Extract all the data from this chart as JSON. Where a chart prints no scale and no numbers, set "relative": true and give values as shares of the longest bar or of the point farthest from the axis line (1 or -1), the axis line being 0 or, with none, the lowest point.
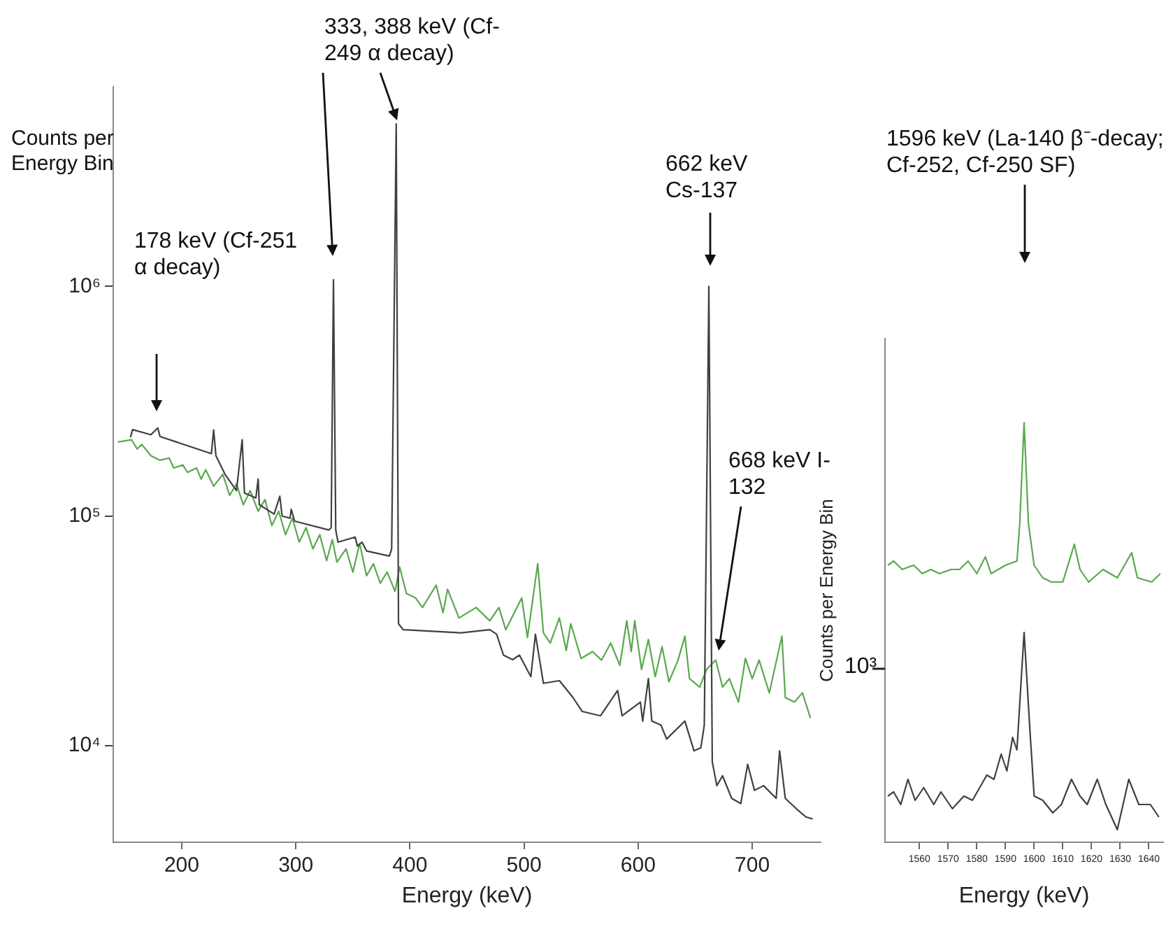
{
  "chart_data": [
    {
      "type": "line",
      "xlabel": "Energy (keV)",
      "ylabel": "Counts per Energy Bin",
      "log": "y",
      "xlim": [
        140,
        760
      ],
      "xticks": [
        200,
        300,
        400,
        500,
        600,
        700
      ],
      "ylim": [
        3800,
        7400000
      ],
      "yticks": [
        {
          "value": 10000,
          "label": "10⁴"
        },
        {
          "value": 100000,
          "label": "10⁵"
        },
        {
          "value": 1000000,
          "label": "10⁶"
        }
      ],
      "grid": false,
      "legend": false,
      "marker": "none",
      "series": [
        {
          "color": "#404040",
          "x": [
            155,
            157,
            173,
            179,
            181,
            226,
            228,
            230,
            238,
            248,
            253,
            255,
            265,
            267,
            268,
            281,
            286,
            288,
            295,
            296,
            299,
            329,
            331,
            333,
            335,
            337,
            352,
            354,
            358,
            362,
            382,
            384,
            388,
            390,
            394,
            445,
            470,
            476,
            482,
            490,
            496,
            506,
            510,
            517,
            531,
            543,
            551,
            567,
            582,
            586,
            602,
            604,
            609,
            612,
            620,
            625,
            641,
            649,
            655,
            658,
            662,
            665,
            669,
            674,
            682,
            690,
            696,
            702,
            710,
            721,
            724,
            729,
            739,
            747,
            753
          ],
          "values": [
            220000,
            238000,
            226000,
            242000,
            222000,
            187000,
            237000,
            183000,
            152000,
            129000,
            215000,
            126000,
            120000,
            145000,
            112000,
            102000,
            122000,
            100000,
            98000,
            107000,
            95000,
            87000,
            89000,
            1070000,
            87000,
            77000,
            81000,
            74000,
            77000,
            70500,
            67000,
            72000,
            5100000,
            34000,
            32000,
            31000,
            32000,
            30600,
            24800,
            23700,
            24800,
            20000,
            30600,
            18700,
            19200,
            16200,
            14100,
            13500,
            17400,
            13500,
            15500,
            12800,
            19600,
            12800,
            12300,
            10700,
            12800,
            9500,
            9800,
            12300,
            1000000,
            8500,
            6700,
            7400,
            5900,
            5600,
            8300,
            6400,
            6700,
            5900,
            9500,
            5900,
            5300,
            4900,
            4800
          ]
        },
        {
          "color": "#5aa84f",
          "x": [
            144,
            156,
            161,
            165,
            173,
            181,
            189,
            193,
            201,
            205,
            213,
            217,
            221,
            228,
            236,
            242,
            248,
            254,
            260,
            267,
            273,
            279,
            285,
            291,
            297,
            303,
            309,
            315,
            321,
            327,
            332,
            336,
            344,
            350,
            356,
            362,
            368,
            374,
            380,
            387,
            391,
            397,
            405,
            411,
            423,
            429,
            433,
            443,
            458,
            470,
            478,
            484,
            498,
            503,
            512,
            517,
            523,
            531,
            537,
            541,
            550,
            560,
            568,
            576,
            584,
            590,
            594,
            597,
            603,
            609,
            615,
            621,
            627,
            635,
            641,
            645,
            654,
            660,
            668,
            674,
            680,
            688,
            694,
            700,
            706,
            715,
            726,
            729,
            737,
            744,
            751
          ],
          "values": [
            210000,
            215000,
            196000,
            205000,
            183000,
            175000,
            179000,
            162000,
            167000,
            155000,
            162000,
            145000,
            159000,
            135000,
            152000,
            123000,
            138000,
            112000,
            129000,
            105000,
            118000,
            91000,
            105000,
            83000,
            98000,
            77000,
            89000,
            72000,
            83000,
            64000,
            79000,
            63000,
            72000,
            57000,
            76000,
            55000,
            62000,
            51000,
            57000,
            47000,
            60000,
            46000,
            44000,
            40000,
            50000,
            38000,
            48000,
            36000,
            40000,
            35000,
            40000,
            32000,
            44000,
            29600,
            62000,
            31000,
            28000,
            36000,
            26000,
            34000,
            24000,
            25700,
            23600,
            28000,
            22400,
            35000,
            25700,
            35000,
            21500,
            29000,
            20000,
            27000,
            19000,
            23600,
            30000,
            19600,
            18000,
            21500,
            23600,
            18000,
            19600,
            15500,
            24000,
            19600,
            23600,
            17000,
            30000,
            16200,
            15500,
            17000,
            13200
          ]
        }
      ],
      "annotations": [
        "178 keV (Cf-251 α decay)",
        "333, 388 keV (Cf-249 α decay)",
        "662 keV Cs-137",
        "668 keV I-132"
      ]
    },
    {
      "type": "line",
      "relative": true,
      "xlabel": "Energy (keV)",
      "ylabel": "Counts per Energy Bin",
      "xlim": [
        1548,
        1645
      ],
      "xticks": [
        1560,
        1570,
        1580,
        1590,
        1600,
        1610,
        1620,
        1630,
        1640
      ],
      "grid": false,
      "legend": false,
      "marker": "none",
      "series": [
        {
          "color": "#5aa84f",
          "x": [
            1549,
            1551,
            1554,
            1558,
            1561,
            1564,
            1567,
            1571,
            1574,
            1577,
            1580,
            1583,
            1585,
            1590,
            1594,
            1595,
            1596.5,
            1598,
            1600,
            1603,
            1606,
            1610,
            1614,
            1616,
            1619,
            1624,
            1629,
            1634,
            1636,
            1641,
            1644
          ],
          "values": [
            0.66,
            0.67,
            0.65,
            0.66,
            0.64,
            0.65,
            0.64,
            0.65,
            0.65,
            0.67,
            0.64,
            0.68,
            0.64,
            0.66,
            0.67,
            0.76,
            1,
            0.76,
            0.66,
            0.63,
            0.62,
            0.62,
            0.71,
            0.65,
            0.62,
            0.65,
            0.63,
            0.69,
            0.63,
            0.62,
            0.64
          ]
        },
        {
          "color": "#404040",
          "x": [
            1549,
            1551,
            1553.5,
            1556,
            1558.5,
            1561.5,
            1565,
            1567.5,
            1571.5,
            1575.5,
            1578.5,
            1583.5,
            1586,
            1588.5,
            1590.5,
            1592.5,
            1594,
            1596.5,
            1598.5,
            1600,
            1603,
            1606.5,
            1609.5,
            1613,
            1616,
            1618.5,
            1622,
            1625,
            1629,
            1633,
            1636.5,
            1640.5,
            1643.5
          ],
          "values": [
            0.11,
            0.12,
            0.09,
            0.15,
            0.1,
            0.13,
            0.09,
            0.12,
            0.08,
            0.11,
            0.1,
            0.16,
            0.15,
            0.21,
            0.17,
            0.25,
            0.22,
            0.5,
            0.27,
            0.11,
            0.1,
            0.07,
            0.09,
            0.15,
            0.11,
            0.09,
            0.15,
            0.09,
            0.03,
            0.15,
            0.09,
            0.09,
            0.06
          ]
        }
      ],
      "annotations": [
        "1596 keV (La-140 β⁻-decay; Cf-252, Cf-250 SF)",
        "10³"
      ]
    }
  ]
}
